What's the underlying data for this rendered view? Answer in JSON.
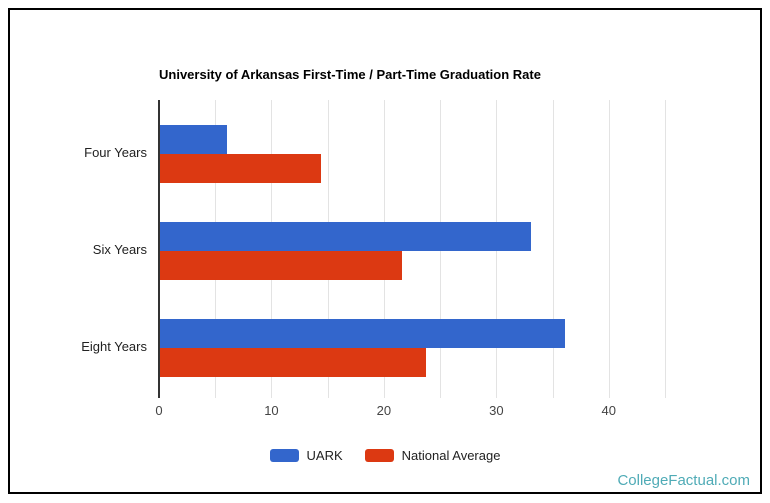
{
  "page": {
    "footer_link": "CollegeFactual.com"
  },
  "chart_data": {
    "type": "bar",
    "orientation": "horizontal",
    "title": "University of Arkansas First-Time / Part-Time Graduation Rate",
    "categories": [
      "Four Years",
      "Six Years",
      "Eight Years"
    ],
    "series": [
      {
        "name": "UARK",
        "color": "#3366cc",
        "values": [
          6,
          33,
          36
        ]
      },
      {
        "name": "National Average",
        "color": "#dc3912",
        "values": [
          14.3,
          21.5,
          23.7
        ]
      }
    ],
    "xlim": [
      0,
      45
    ],
    "x_ticks": [
      0,
      10,
      20,
      30,
      40
    ],
    "gridline_step": 5,
    "grid": true,
    "legend_position": "bottom",
    "axis_color": "#333333",
    "gridline_color": "#e3e3e3",
    "frame_border_color": "#000000",
    "footer_color": "#4fabb6"
  }
}
